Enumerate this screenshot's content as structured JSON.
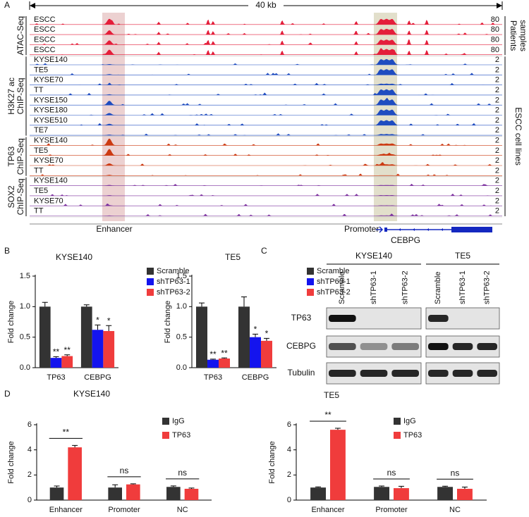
{
  "panel_labels": {
    "a": "A",
    "b": "B",
    "c": "C",
    "d": "D"
  },
  "panel_a": {
    "scale_label": "40 kb",
    "groups": [
      {
        "label": [
          "ATAC-Seq"
        ],
        "color": "#e41e3a",
        "tracks": [
          {
            "label": "ESCC",
            "scale": 80
          },
          {
            "label": "ESCC",
            "scale": 80
          },
          {
            "label": "ESCC",
            "scale": 80
          },
          {
            "label": "ESCC",
            "scale": 80
          }
        ]
      },
      {
        "label": [
          "H3K27 ac",
          "ChIP-Seq"
        ],
        "color": "#1f4cc0",
        "tracks": [
          {
            "label": "KYSE140",
            "scale": 2
          },
          {
            "label": "TE5",
            "scale": 2
          },
          {
            "label": "KYSE70",
            "scale": 2
          },
          {
            "label": "TT",
            "scale": 2
          },
          {
            "label": "KYSE150",
            "scale": 2
          },
          {
            "label": "KYSE180",
            "scale": 2
          },
          {
            "label": "KYSE510",
            "scale": 2
          },
          {
            "label": "TE7",
            "scale": 2
          }
        ]
      },
      {
        "label": [
          "TP63",
          "ChIP-Seq"
        ],
        "color": "#cc3a12",
        "tracks": [
          {
            "label": "KYSE140",
            "scale": 2
          },
          {
            "label": "TE5",
            "scale": 2
          },
          {
            "label": "KYSE70",
            "scale": 2
          },
          {
            "label": "TT",
            "scale": 2
          }
        ]
      },
      {
        "label": [
          "SOX2",
          "ChIP-Seq"
        ],
        "color": "#7b2f9e",
        "tracks": [
          {
            "label": "KYSE140",
            "scale": 2
          },
          {
            "label": "TE5",
            "scale": 2
          },
          {
            "label": "KYSE70",
            "scale": 2
          },
          {
            "label": "TT",
            "scale": 2
          }
        ]
      }
    ],
    "side_labels": [
      [
        "Patients",
        "samples"
      ],
      [
        "ESCC cell lines"
      ]
    ],
    "enhancer_label": "Enhancer",
    "promoter_label": "Promoter",
    "gene_label": "CEBPG"
  },
  "panel_c": {
    "groups": [
      {
        "name": "KYSE140",
        "lanes": [
          "Scramble",
          "shTP63-1",
          "shTP63-2"
        ]
      },
      {
        "name": "TE5",
        "lanes": [
          "Scramble",
          "shTP63-1",
          "shTP63-2"
        ]
      }
    ],
    "rows": [
      "TP63",
      "CEBPG",
      "Tubulin"
    ]
  },
  "chart_data": [
    {
      "type": "bar",
      "title": "KYSE140",
      "ylabel": "Fold change",
      "categories": [
        "TP63",
        "CEBPG"
      ],
      "series": [
        {
          "name": "Scramble",
          "color": "#333333",
          "values": [
            1.0,
            1.0
          ],
          "errors": [
            0.07,
            0.03
          ]
        },
        {
          "name": "shTP63-1",
          "color": "#1414ee",
          "values": [
            0.16,
            0.62
          ],
          "errors": [
            0.02,
            0.08
          ],
          "annotations": [
            "**",
            "*"
          ]
        },
        {
          "name": "shTP63-2",
          "color": "#f03c3c",
          "values": [
            0.19,
            0.6
          ],
          "errors": [
            0.02,
            0.09
          ],
          "annotations": [
            "**",
            "*"
          ]
        }
      ],
      "ylim": [
        0,
        1.5
      ],
      "yticks": [
        {
          "value": 0,
          "label": "0.0"
        },
        {
          "value": 0.5,
          "label": "0.5"
        },
        {
          "value": 1,
          "label": "1.0"
        },
        {
          "value": 1.5,
          "label": "1.5"
        }
      ],
      "legend": "top-right"
    },
    {
      "type": "bar",
      "title": "TE5",
      "ylabel": "Fold change",
      "categories": [
        "TP63",
        "CEBPG"
      ],
      "series": [
        {
          "name": "Scramble",
          "color": "#333333",
          "values": [
            1.0,
            1.0
          ],
          "errors": [
            0.06,
            0.16
          ]
        },
        {
          "name": "shTP63-1",
          "color": "#1414ee",
          "values": [
            0.13,
            0.5
          ],
          "errors": [
            0.01,
            0.05
          ],
          "annotations": [
            "**",
            "*"
          ]
        },
        {
          "name": "shTP63-2",
          "color": "#f03c3c",
          "values": [
            0.15,
            0.44
          ],
          "errors": [
            0.01,
            0.04
          ],
          "annotations": [
            "**",
            "*"
          ]
        }
      ],
      "ylim": [
        0,
        1.5
      ],
      "yticks": [
        {
          "value": 0,
          "label": "0.0"
        },
        {
          "value": 0.5,
          "label": "0.5"
        },
        {
          "value": 1,
          "label": "1.0"
        },
        {
          "value": 1.5,
          "label": "1.5"
        }
      ],
      "legend": "top-right"
    },
    {
      "type": "bar",
      "title": "KYSE140",
      "ylabel": "Fold change",
      "categories": [
        "Enhancer",
        "Promoter",
        "NC"
      ],
      "series": [
        {
          "name": "IgG",
          "color": "#333333",
          "values": [
            1.0,
            1.0,
            1.05
          ],
          "errors": [
            0.12,
            0.22,
            0.08
          ]
        },
        {
          "name": "TP63",
          "color": "#f03c3c",
          "values": [
            4.2,
            1.25,
            0.9
          ],
          "errors": [
            0.15,
            0.05,
            0.06
          ]
        }
      ],
      "significance": [
        "**",
        "ns",
        "ns"
      ],
      "ylim": [
        0,
        6
      ],
      "yticks": [
        0,
        2,
        4,
        6
      ],
      "legend": "top-right"
    },
    {
      "type": "bar",
      "title": "TE5",
      "ylabel": "Fold change",
      "categories": [
        "Enhancer",
        "Promoter",
        "NC"
      ],
      "series": [
        {
          "name": "IgG",
          "color": "#333333",
          "values": [
            1.0,
            1.05,
            1.05
          ],
          "errors": [
            0.05,
            0.07,
            0.06
          ]
        },
        {
          "name": "TP63",
          "color": "#f03c3c",
          "values": [
            5.6,
            0.95,
            0.9
          ],
          "errors": [
            0.12,
            0.15,
            0.14
          ]
        }
      ],
      "significance": [
        "**",
        "ns",
        "ns"
      ],
      "ylim": [
        0,
        6
      ],
      "yticks": [
        0,
        2,
        4,
        6
      ],
      "legend": "top-right"
    }
  ]
}
